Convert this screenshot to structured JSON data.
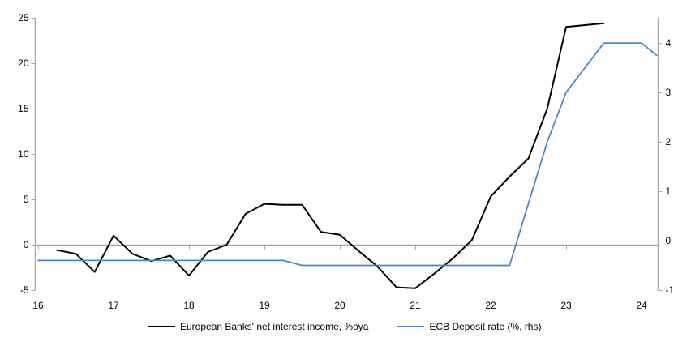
{
  "chart_data": {
    "type": "line",
    "title": "",
    "xlabel": "",
    "ylabel_left": "",
    "ylabel_right": "",
    "grid": false,
    "legend_position": "bottom",
    "x_axis": {
      "range": [
        16,
        24.25
      ],
      "ticks": [
        16,
        17,
        18,
        19,
        20,
        21,
        22,
        23,
        24
      ],
      "labels": [
        "16",
        "17",
        "18",
        "19",
        "20",
        "21",
        "22",
        "23",
        "24"
      ]
    },
    "left_axis": {
      "range": [
        -5,
        25
      ],
      "ticks": [
        25,
        20,
        15,
        10,
        5,
        0,
        -5
      ]
    },
    "right_axis": {
      "range": [
        -1,
        4.51
      ],
      "ticks": [
        4,
        3,
        2,
        1,
        0,
        -1
      ]
    },
    "zero_line": true,
    "series": [
      {
        "name": "European Banks' net interest income, %oya",
        "axis": "left",
        "color": "#000000",
        "x": [
          16.25,
          16.5,
          16.75,
          17.0,
          17.25,
          17.5,
          17.75,
          18.0,
          18.25,
          18.5,
          18.75,
          19.0,
          19.25,
          19.5,
          19.75,
          20.0,
          20.25,
          20.5,
          20.75,
          21.0,
          21.25,
          21.5,
          21.75,
          22.0,
          22.25,
          22.5,
          22.75,
          23.0,
          23.25,
          23.5
        ],
        "values": [
          -0.6,
          -1.0,
          -3.0,
          1.0,
          -1.0,
          -1.8,
          -1.2,
          -3.4,
          -0.8,
          0.0,
          3.4,
          4.5,
          4.4,
          4.4,
          1.4,
          1.1,
          -0.7,
          -2.4,
          -4.7,
          -4.8,
          -3.2,
          -1.5,
          0.5,
          5.3,
          7.5,
          9.5,
          15.0,
          24.0,
          24.2,
          24.4
        ]
      },
      {
        "name": "ECB Deposit rate (%, rhs)",
        "axis": "right",
        "color": "#4f87c2",
        "x": [
          16.0,
          16.25,
          16.5,
          16.75,
          17.0,
          17.25,
          17.5,
          17.75,
          18.0,
          18.25,
          18.5,
          18.75,
          19.0,
          19.25,
          19.5,
          19.75,
          20.0,
          20.25,
          20.5,
          20.75,
          21.0,
          21.25,
          21.5,
          21.75,
          22.0,
          22.25,
          22.5,
          22.75,
          23.0,
          23.25,
          23.5,
          23.75,
          24.0,
          24.2
        ],
        "values": [
          -0.4,
          -0.4,
          -0.4,
          -0.4,
          -0.4,
          -0.4,
          -0.4,
          -0.4,
          -0.4,
          -0.4,
          -0.4,
          -0.4,
          -0.4,
          -0.4,
          -0.5,
          -0.5,
          -0.5,
          -0.5,
          -0.5,
          -0.5,
          -0.5,
          -0.5,
          -0.5,
          -0.5,
          -0.5,
          -0.5,
          0.75,
          2.0,
          3.0,
          3.5,
          4.0,
          4.0,
          4.0,
          3.75
        ]
      }
    ],
    "colors": {
      "axis_gray": "#a6a6a6",
      "zero_line_gray": "#a6a6a6",
      "tick_text": "#000000",
      "nii_line": "#000000",
      "ecb_line": "#4f87c2"
    }
  }
}
